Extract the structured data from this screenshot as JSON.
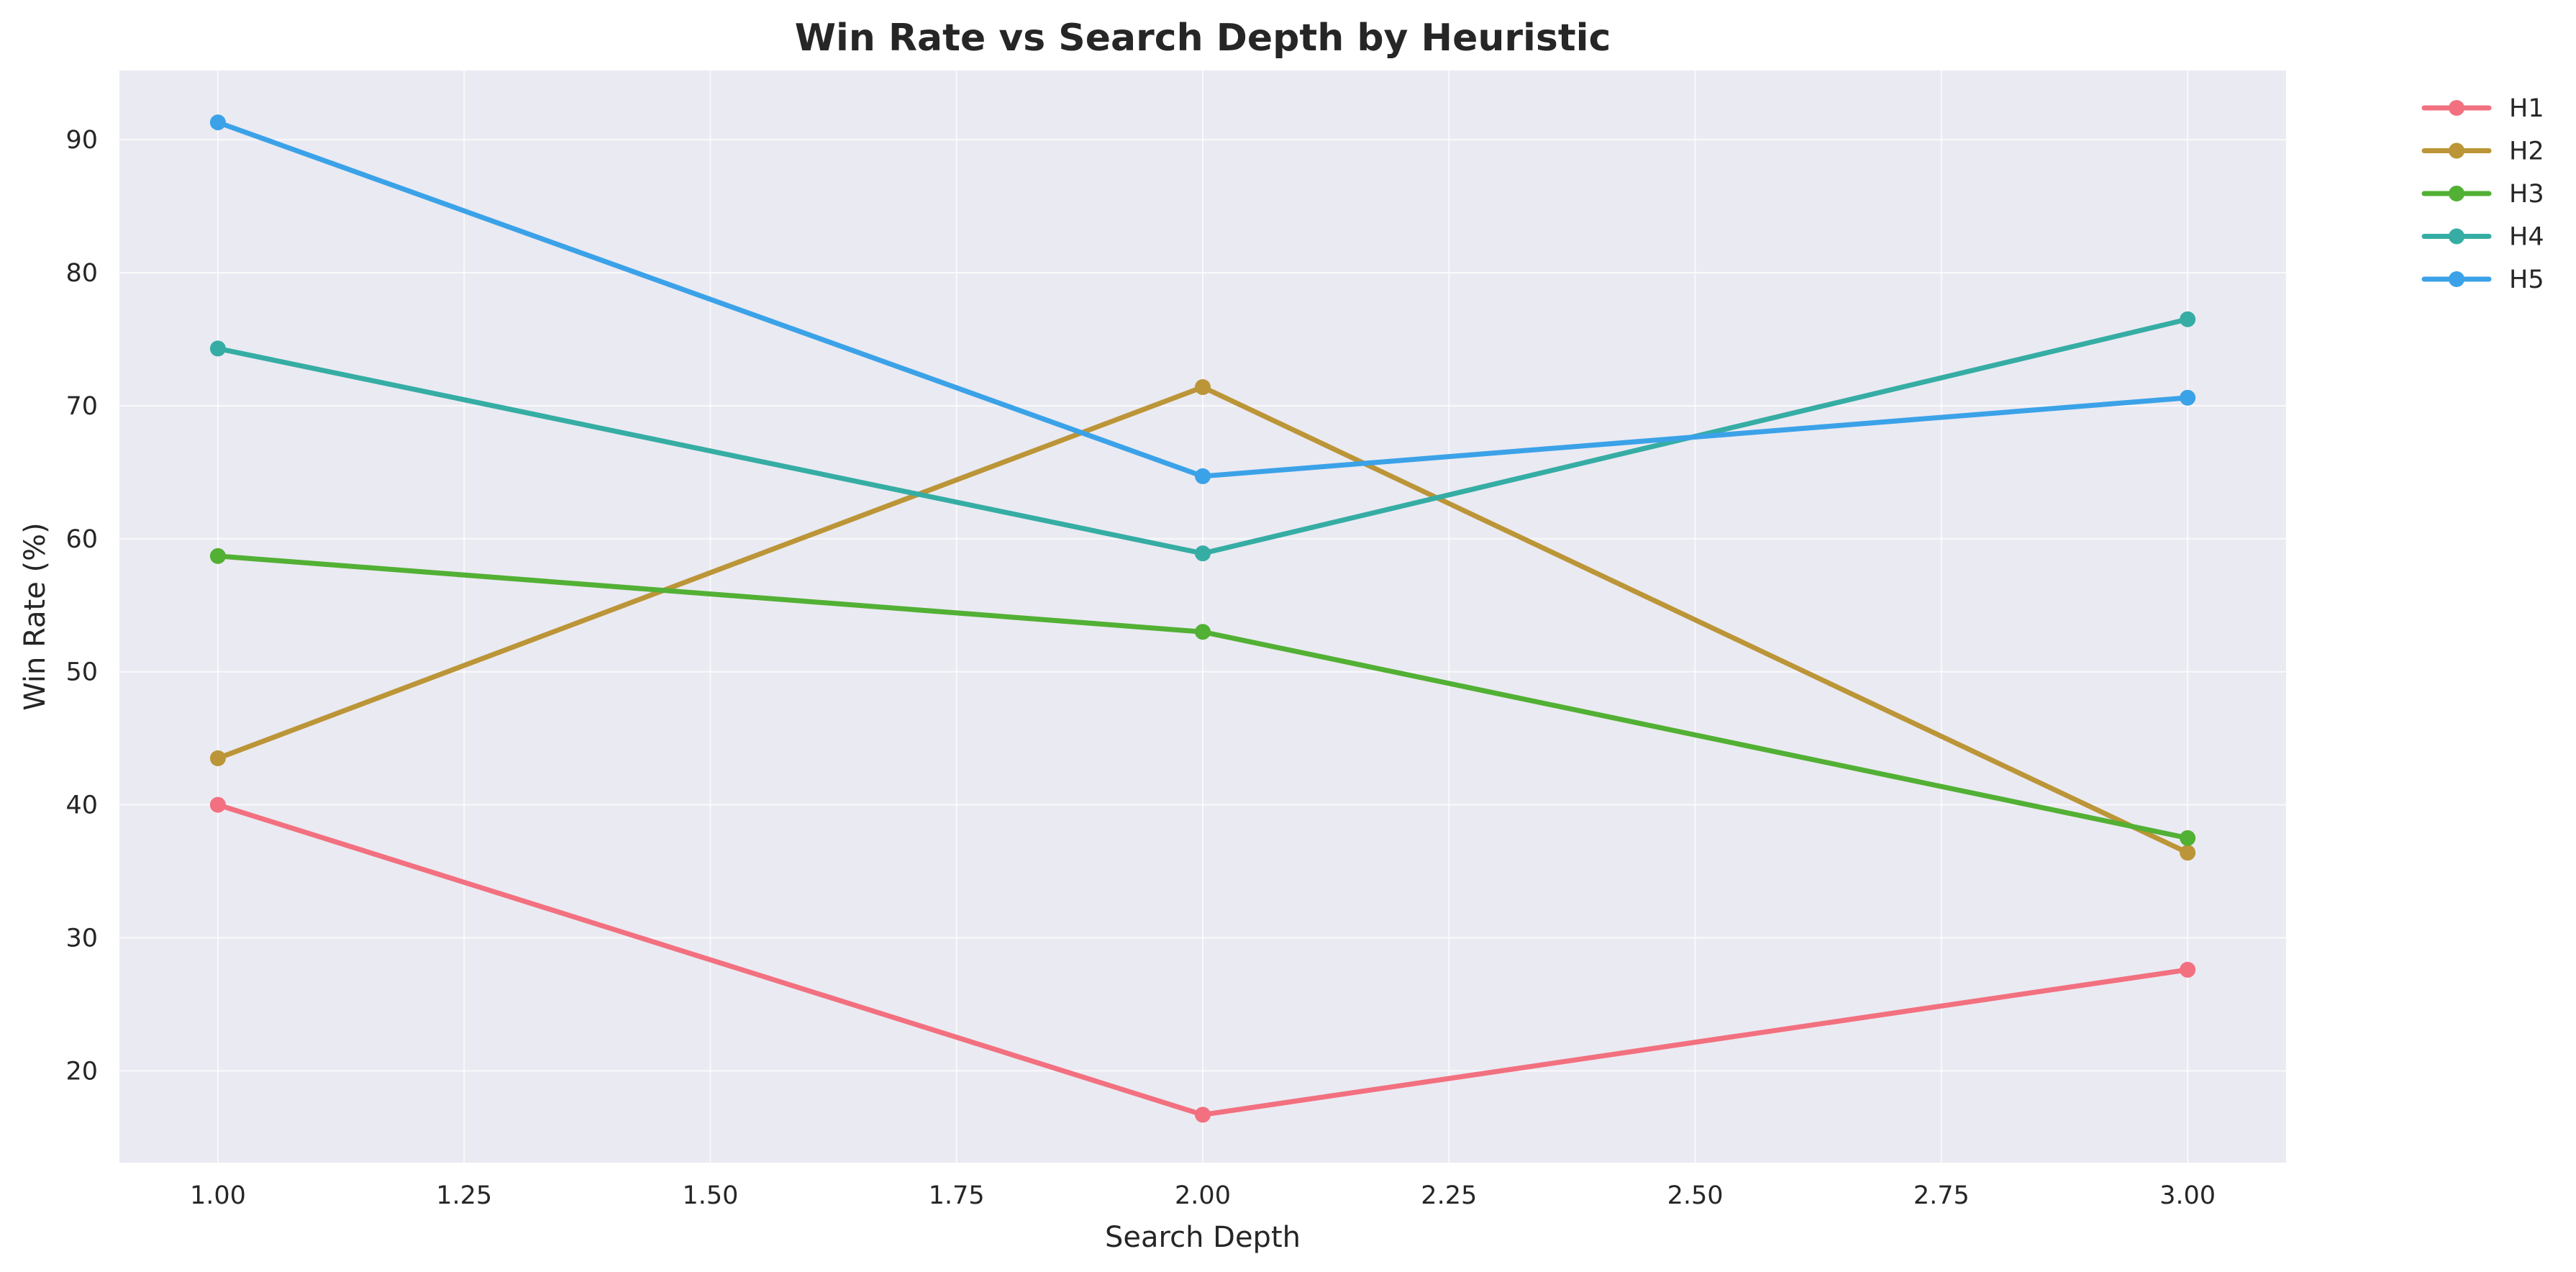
{
  "chart_data": {
    "type": "line",
    "title": "Win Rate vs Search Depth by Heuristic",
    "xlabel": "Search Depth",
    "ylabel": "Win Rate (%)",
    "xlim": [
      0.9,
      3.1
    ],
    "ylim": [
      13.1,
      95.2
    ],
    "xticks": [
      1.0,
      1.25,
      1.5,
      1.75,
      2.0,
      2.25,
      2.5,
      2.75,
      3.0
    ],
    "xtick_labels": [
      "1.00",
      "1.25",
      "1.50",
      "1.75",
      "2.00",
      "2.25",
      "2.50",
      "2.75",
      "3.00"
    ],
    "yticks": [
      20,
      30,
      40,
      50,
      60,
      70,
      80,
      90
    ],
    "ytick_labels": [
      "20",
      "30",
      "40",
      "50",
      "60",
      "70",
      "80",
      "90"
    ],
    "grid": true,
    "legend_position": "outside-top-right",
    "background_color": "#eaeaf2",
    "x": [
      1,
      2,
      3
    ],
    "series": [
      {
        "name": "H1",
        "color": "#f2707f",
        "values": [
          40.0,
          16.7,
          27.6
        ]
      },
      {
        "name": "H2",
        "color": "#bb9537",
        "values": [
          43.5,
          71.4,
          36.4
        ]
      },
      {
        "name": "H3",
        "color": "#52b034",
        "values": [
          58.7,
          53.0,
          37.5
        ]
      },
      {
        "name": "H4",
        "color": "#36ada4",
        "values": [
          74.3,
          58.9,
          76.5
        ]
      },
      {
        "name": "H5",
        "color": "#3ba2e8",
        "values": [
          91.3,
          64.7,
          70.6
        ]
      }
    ]
  }
}
